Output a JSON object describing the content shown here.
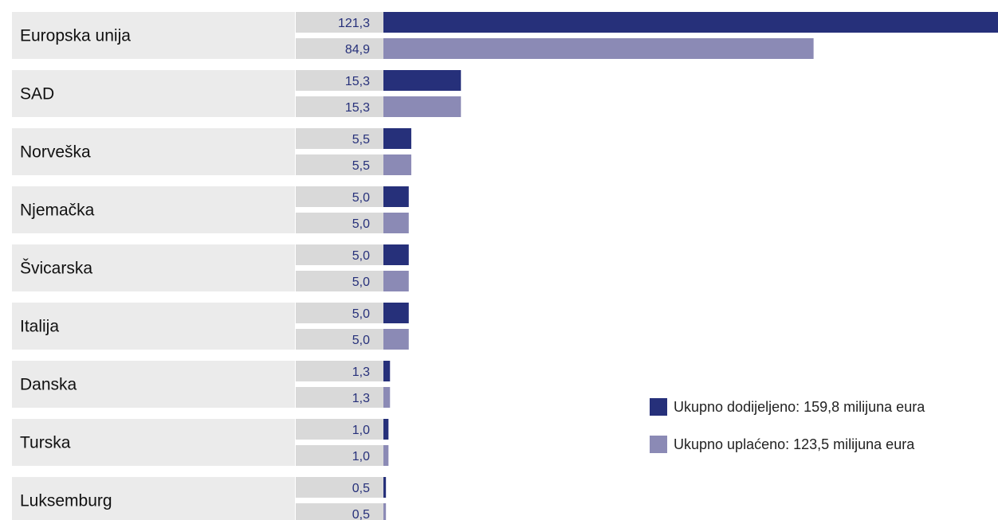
{
  "colors": {
    "allocated": "#26307a",
    "paid": "#8b8ab5",
    "label_bg": "#ebebeb",
    "value_bg": "#d9d9d9",
    "value_text": "#26307a"
  },
  "legend": {
    "allocated_label": "Ukupno dodijeljeno: 159,8 milijuna eura",
    "paid_label": "Ukupno uplaćeno: 123,5 milijuna eura"
  },
  "chart_data": {
    "type": "bar",
    "orientation": "horizontal",
    "categories": [
      "Europska unija",
      "SAD",
      "Norveška",
      "Njemačka",
      "Švicarska",
      "Italija",
      "Danska",
      "Turska",
      "Luksemburg"
    ],
    "series": [
      {
        "name": "Ukupno dodijeljeno: 159,8 milijuna eura",
        "values": [
          121.3,
          15.3,
          5.5,
          5.0,
          5.0,
          5.0,
          1.3,
          1.0,
          0.5
        ],
        "value_labels": [
          "121,3",
          "15,3",
          "5,5",
          "5,0",
          "5,0",
          "5,0",
          "1,3",
          "1,0",
          "0,5"
        ]
      },
      {
        "name": "Ukupno uplaćeno: 123,5 milijuna eura",
        "values": [
          84.9,
          15.3,
          5.5,
          5.0,
          5.0,
          5.0,
          1.3,
          1.0,
          0.5
        ],
        "value_labels": [
          "84,9",
          "15,3",
          "5,5",
          "5,0",
          "5,0",
          "5,0",
          "1,3",
          "1,0",
          "0,5"
        ]
      }
    ],
    "legend_position": "right",
    "grid": false
  }
}
